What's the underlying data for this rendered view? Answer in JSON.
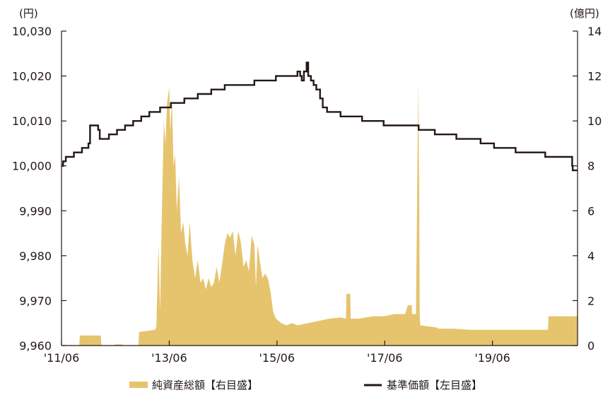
{
  "chart_data": {
    "type": "area+line",
    "left_axis": {
      "unit": "(円)",
      "ticks": [
        "9,960",
        "9,970",
        "9,980",
        "9,990",
        "10,000",
        "10,010",
        "10,020",
        "10,030"
      ],
      "ylim": [
        9960,
        10030
      ]
    },
    "right_axis": {
      "unit": "(億円)",
      "ticks": [
        "0",
        "2",
        "4",
        "6",
        "8",
        "10",
        "12",
        "14"
      ],
      "ylim": [
        0,
        14
      ]
    },
    "x_axis": {
      "tick_labels": [
        "'11/06",
        "'13/06",
        "'15/06",
        "'17/06",
        "'19/06"
      ],
      "tick_dates": [
        2011.42,
        2013.42,
        2015.42,
        2017.42,
        2019.42
      ],
      "xlim": [
        2011.42,
        2021.0
      ]
    },
    "colors": {
      "area": "#e6c46e",
      "line": "#231815",
      "axis": "#231815"
    },
    "legend": [
      {
        "label": "純資産総額【右目盛】",
        "style": "area"
      },
      {
        "label": "基準価額【左目盛】",
        "style": "line"
      }
    ],
    "series": [
      {
        "name": "純資産総額【右目盛】",
        "axis": "right",
        "style": "area",
        "points": [
          [
            2011.42,
            0.0
          ],
          [
            2011.75,
            0.0
          ],
          [
            2011.76,
            0.45
          ],
          [
            2012.15,
            0.45
          ],
          [
            2012.16,
            0.0
          ],
          [
            2012.4,
            0.0
          ],
          [
            2012.41,
            0.05
          ],
          [
            2012.55,
            0.05
          ],
          [
            2012.56,
            0.0
          ],
          [
            2012.85,
            0.0
          ],
          [
            2012.86,
            0.6
          ],
          [
            2013.15,
            0.7
          ],
          [
            2013.18,
            0.8
          ],
          [
            2013.22,
            4.5
          ],
          [
            2013.25,
            1.5
          ],
          [
            2013.28,
            5.5
          ],
          [
            2013.32,
            10.0
          ],
          [
            2013.35,
            9.0
          ],
          [
            2013.38,
            10.8
          ],
          [
            2013.42,
            11.5
          ],
          [
            2013.44,
            9.5
          ],
          [
            2013.47,
            11.0
          ],
          [
            2013.5,
            8.0
          ],
          [
            2013.53,
            8.5
          ],
          [
            2013.56,
            6.0
          ],
          [
            2013.6,
            7.5
          ],
          [
            2013.64,
            5.0
          ],
          [
            2013.68,
            5.5
          ],
          [
            2013.72,
            4.5
          ],
          [
            2013.76,
            4.0
          ],
          [
            2013.8,
            5.5
          ],
          [
            2013.85,
            3.8
          ],
          [
            2013.9,
            3.0
          ],
          [
            2013.95,
            3.8
          ],
          [
            2014.0,
            2.8
          ],
          [
            2014.05,
            3.0
          ],
          [
            2014.1,
            2.5
          ],
          [
            2014.15,
            3.0
          ],
          [
            2014.2,
            2.6
          ],
          [
            2014.25,
            2.8
          ],
          [
            2014.3,
            3.5
          ],
          [
            2014.35,
            2.8
          ],
          [
            2014.4,
            3.6
          ],
          [
            2014.45,
            4.5
          ],
          [
            2014.5,
            5.0
          ],
          [
            2014.55,
            4.8
          ],
          [
            2014.6,
            5.1
          ],
          [
            2014.65,
            4.0
          ],
          [
            2014.7,
            5.1
          ],
          [
            2014.75,
            4.6
          ],
          [
            2014.8,
            3.5
          ],
          [
            2014.85,
            3.8
          ],
          [
            2014.9,
            3.3
          ],
          [
            2014.95,
            4.9
          ],
          [
            2015.0,
            4.5
          ],
          [
            2015.03,
            2.6
          ],
          [
            2015.06,
            4.5
          ],
          [
            2015.1,
            3.8
          ],
          [
            2015.15,
            3.0
          ],
          [
            2015.2,
            3.2
          ],
          [
            2015.25,
            3.0
          ],
          [
            2015.3,
            2.4
          ],
          [
            2015.35,
            1.5
          ],
          [
            2015.4,
            1.2
          ],
          [
            2015.5,
            1.0
          ],
          [
            2015.6,
            0.9
          ],
          [
            2015.7,
            1.0
          ],
          [
            2015.8,
            0.9
          ],
          [
            2016.0,
            1.0
          ],
          [
            2016.2,
            1.1
          ],
          [
            2016.4,
            1.2
          ],
          [
            2016.6,
            1.25
          ],
          [
            2016.7,
            1.2
          ],
          [
            2016.71,
            2.3
          ],
          [
            2016.78,
            2.3
          ],
          [
            2016.79,
            1.2
          ],
          [
            2016.95,
            1.2
          ],
          [
            2017.2,
            1.3
          ],
          [
            2017.4,
            1.3
          ],
          [
            2017.6,
            1.4
          ],
          [
            2017.8,
            1.4
          ],
          [
            2017.85,
            1.8
          ],
          [
            2017.92,
            1.8
          ],
          [
            2017.93,
            1.4
          ],
          [
            2018.0,
            1.4
          ],
          [
            2018.02,
            6.0
          ],
          [
            2018.04,
            11.6
          ],
          [
            2018.06,
            7.0
          ],
          [
            2018.07,
            1.4
          ],
          [
            2018.08,
            0.9
          ],
          [
            2018.4,
            0.8
          ],
          [
            2018.41,
            0.75
          ],
          [
            2018.7,
            0.75
          ],
          [
            2019.0,
            0.7
          ],
          [
            2019.5,
            0.7
          ],
          [
            2020.0,
            0.7
          ],
          [
            2020.45,
            0.7
          ],
          [
            2020.46,
            1.3
          ],
          [
            2020.7,
            1.3
          ],
          [
            2021.0,
            1.3
          ]
        ]
      },
      {
        "name": "基準価額【左目盛】",
        "axis": "left",
        "style": "line",
        "points": [
          [
            2011.42,
            10000
          ],
          [
            2011.45,
            10001
          ],
          [
            2011.5,
            10002
          ],
          [
            2011.65,
            10003
          ],
          [
            2011.8,
            10004
          ],
          [
            2011.92,
            10005
          ],
          [
            2011.95,
            10009
          ],
          [
            2012.1,
            10008
          ],
          [
            2012.13,
            10006
          ],
          [
            2012.3,
            10007
          ],
          [
            2012.45,
            10008
          ],
          [
            2012.6,
            10009
          ],
          [
            2012.75,
            10010
          ],
          [
            2012.9,
            10011
          ],
          [
            2013.05,
            10012
          ],
          [
            2013.25,
            10013
          ],
          [
            2013.45,
            10014
          ],
          [
            2013.7,
            10015
          ],
          [
            2013.95,
            10016
          ],
          [
            2014.2,
            10017
          ],
          [
            2014.45,
            10018
          ],
          [
            2014.75,
            10018
          ],
          [
            2015.0,
            10019
          ],
          [
            2015.25,
            10019
          ],
          [
            2015.4,
            10020
          ],
          [
            2015.75,
            10020
          ],
          [
            2015.8,
            10021
          ],
          [
            2015.85,
            10020
          ],
          [
            2015.88,
            10019
          ],
          [
            2015.92,
            10021
          ],
          [
            2015.97,
            10023
          ],
          [
            2016.0,
            10020
          ],
          [
            2016.05,
            10019
          ],
          [
            2016.1,
            10018
          ],
          [
            2016.15,
            10017
          ],
          [
            2016.22,
            10015
          ],
          [
            2016.27,
            10013
          ],
          [
            2016.35,
            10012
          ],
          [
            2016.6,
            10011
          ],
          [
            2017.0,
            10010
          ],
          [
            2017.4,
            10009
          ],
          [
            2017.9,
            10009
          ],
          [
            2018.05,
            10008
          ],
          [
            2018.35,
            10007
          ],
          [
            2018.75,
            10006
          ],
          [
            2019.2,
            10005
          ],
          [
            2019.45,
            10004
          ],
          [
            2019.85,
            10003
          ],
          [
            2020.4,
            10002
          ],
          [
            2020.9,
            10000
          ],
          [
            2020.91,
            9999
          ],
          [
            2021.0,
            9999
          ]
        ]
      }
    ]
  }
}
